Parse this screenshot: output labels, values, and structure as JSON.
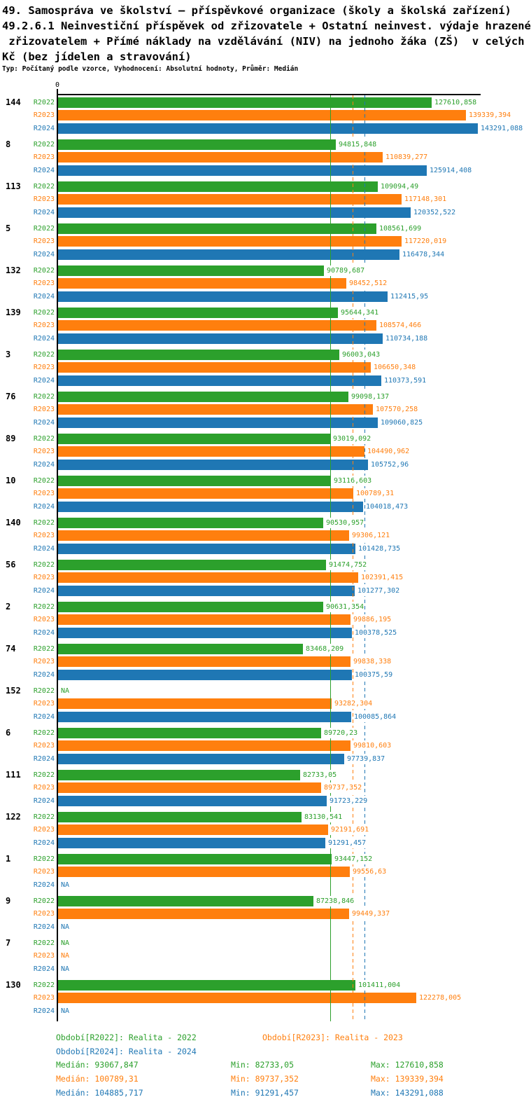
{
  "title": {
    "line1": "49. Samospráva ve školství – příspěvkové organizace (školy a školská zařízení)",
    "line2": "49.2.6.1 Neinvestiční příspěvek od zřizovatele + Ostatní neinvest. výdaje hrazené",
    "line3": " zřizovatelem + Přímé náklady na vzdělávání (NIV) na jednoho žáka (ZŠ)  v celých",
    "line4": "Kč (bez jídelen a stravování)",
    "meta": "Typ: Počítaný podle vzorce, Vyhodnocení: Absolutní hodnoty, Průměr: Medián"
  },
  "axis": {
    "zero_label": "0"
  },
  "colors": {
    "R2022": "#2ca02c",
    "R2023": "#ff7f0e",
    "R2024": "#1f77b4",
    "axis": "#000000"
  },
  "chart_data": {
    "type": "bar",
    "orientation": "horizontal",
    "value_unit": "Kč",
    "decimal_separator": ",",
    "na_label": "NA",
    "series": [
      "R2022",
      "R2023",
      "R2024"
    ],
    "xlim": [
      0,
      143291.088
    ],
    "grid": false,
    "categories": [
      "144",
      "8",
      "113",
      "5",
      "132",
      "139",
      "3",
      "76",
      "89",
      "10",
      "140",
      "56",
      "2",
      "74",
      "152",
      "6",
      "111",
      "122",
      "1",
      "9",
      "7",
      "130"
    ],
    "groups": [
      {
        "id": "144",
        "values": [
          "127610,858",
          "139339,394",
          "143291,088"
        ]
      },
      {
        "id": "8",
        "values": [
          "94815,848",
          "110839,277",
          "125914,408"
        ]
      },
      {
        "id": "113",
        "values": [
          "109094,49",
          "117148,301",
          "120352,522"
        ]
      },
      {
        "id": "5",
        "values": [
          "108561,699",
          "117220,019",
          "116478,344"
        ]
      },
      {
        "id": "132",
        "values": [
          "90789,687",
          "98452,512",
          "112415,95"
        ]
      },
      {
        "id": "139",
        "values": [
          "95644,341",
          "108574,466",
          "110734,188"
        ]
      },
      {
        "id": "3",
        "values": [
          "96003,043",
          "106650,348",
          "110373,591"
        ]
      },
      {
        "id": "76",
        "values": [
          "99098,137",
          "107570,258",
          "109060,825"
        ]
      },
      {
        "id": "89",
        "values": [
          "93019,092",
          "104490,962",
          "105752,96"
        ]
      },
      {
        "id": "10",
        "values": [
          "93116,603",
          "100789,31",
          "104018,473"
        ]
      },
      {
        "id": "140",
        "values": [
          "90530,957",
          "99306,121",
          "101428,735"
        ]
      },
      {
        "id": "56",
        "values": [
          "91474,752",
          "102391,415",
          "101277,302"
        ]
      },
      {
        "id": "2",
        "values": [
          "90631,354",
          "99886,195",
          "100378,525"
        ]
      },
      {
        "id": "74",
        "values": [
          "83468,209",
          "99838,338",
          "100375,59"
        ]
      },
      {
        "id": "152",
        "values": [
          "NA",
          "93282,304",
          "100085,864"
        ]
      },
      {
        "id": "6",
        "values": [
          "89720,23",
          "99810,603",
          "97739,837"
        ]
      },
      {
        "id": "111",
        "values": [
          "82733,05",
          "89737,352",
          "91723,229"
        ]
      },
      {
        "id": "122",
        "values": [
          "83130,541",
          "92191,691",
          "91291,457"
        ]
      },
      {
        "id": "1",
        "values": [
          "93447,152",
          "99556,63",
          "NA"
        ]
      },
      {
        "id": "9",
        "values": [
          "87238,846",
          "99449,337",
          "NA"
        ]
      },
      {
        "id": "7",
        "values": [
          "NA",
          "NA",
          "NA"
        ]
      },
      {
        "id": "130",
        "values": [
          "101411,004",
          "122278,005",
          "NA"
        ]
      }
    ],
    "median_lines": {
      "R2022": 93067.847,
      "R2023": 100789.31,
      "R2024": 104885.717
    }
  },
  "legend": [
    {
      "series": "R2022",
      "label": "Období[R2022]: Realita - 2022"
    },
    {
      "series": "R2023",
      "label": "Období[R2023]: Realita - 2023"
    },
    {
      "series": "R2024",
      "label": "Období[R2024]: Realita - 2024"
    }
  ],
  "stats": [
    {
      "series": "R2022",
      "median": "Medián: 93067,847",
      "min": "Min: 82733,05",
      "max": "Max: 127610,858"
    },
    {
      "series": "R2023",
      "median": "Medián: 100789,31",
      "min": "Min: 89737,352",
      "max": "Max: 139339,394"
    },
    {
      "series": "R2024",
      "median": "Medián: 104885,717",
      "min": "Min: 91291,457",
      "max": "Max: 143291,088"
    }
  ]
}
